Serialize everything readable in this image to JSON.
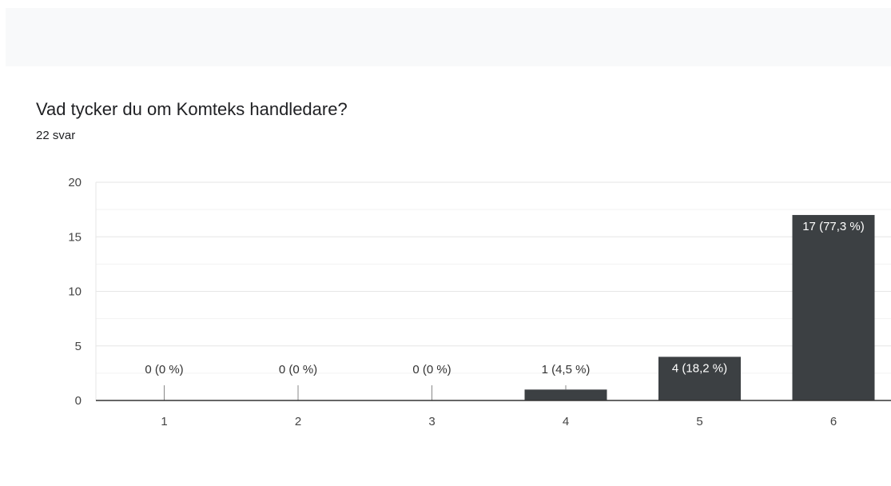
{
  "question": {
    "title": "Vad tycker du om Komteks handledare?",
    "response_count": "22 svar"
  },
  "chart_data": {
    "type": "bar",
    "categories": [
      "1",
      "2",
      "3",
      "4",
      "5",
      "6"
    ],
    "values": [
      0,
      0,
      0,
      1,
      4,
      17
    ],
    "data_labels": [
      "0 (0 %)",
      "0 (0 %)",
      "0 (0 %)",
      "1 (4,5 %)",
      "4 (18,2 %)",
      "17 (77,3 %)"
    ],
    "title": "Vad tycker du om Komteks handledare?",
    "xlabel": "",
    "ylabel": "",
    "ylim": [
      0,
      20
    ],
    "yticks": [
      0,
      5,
      10,
      15,
      20
    ],
    "grid": true,
    "bar_color": "#3c4043"
  }
}
